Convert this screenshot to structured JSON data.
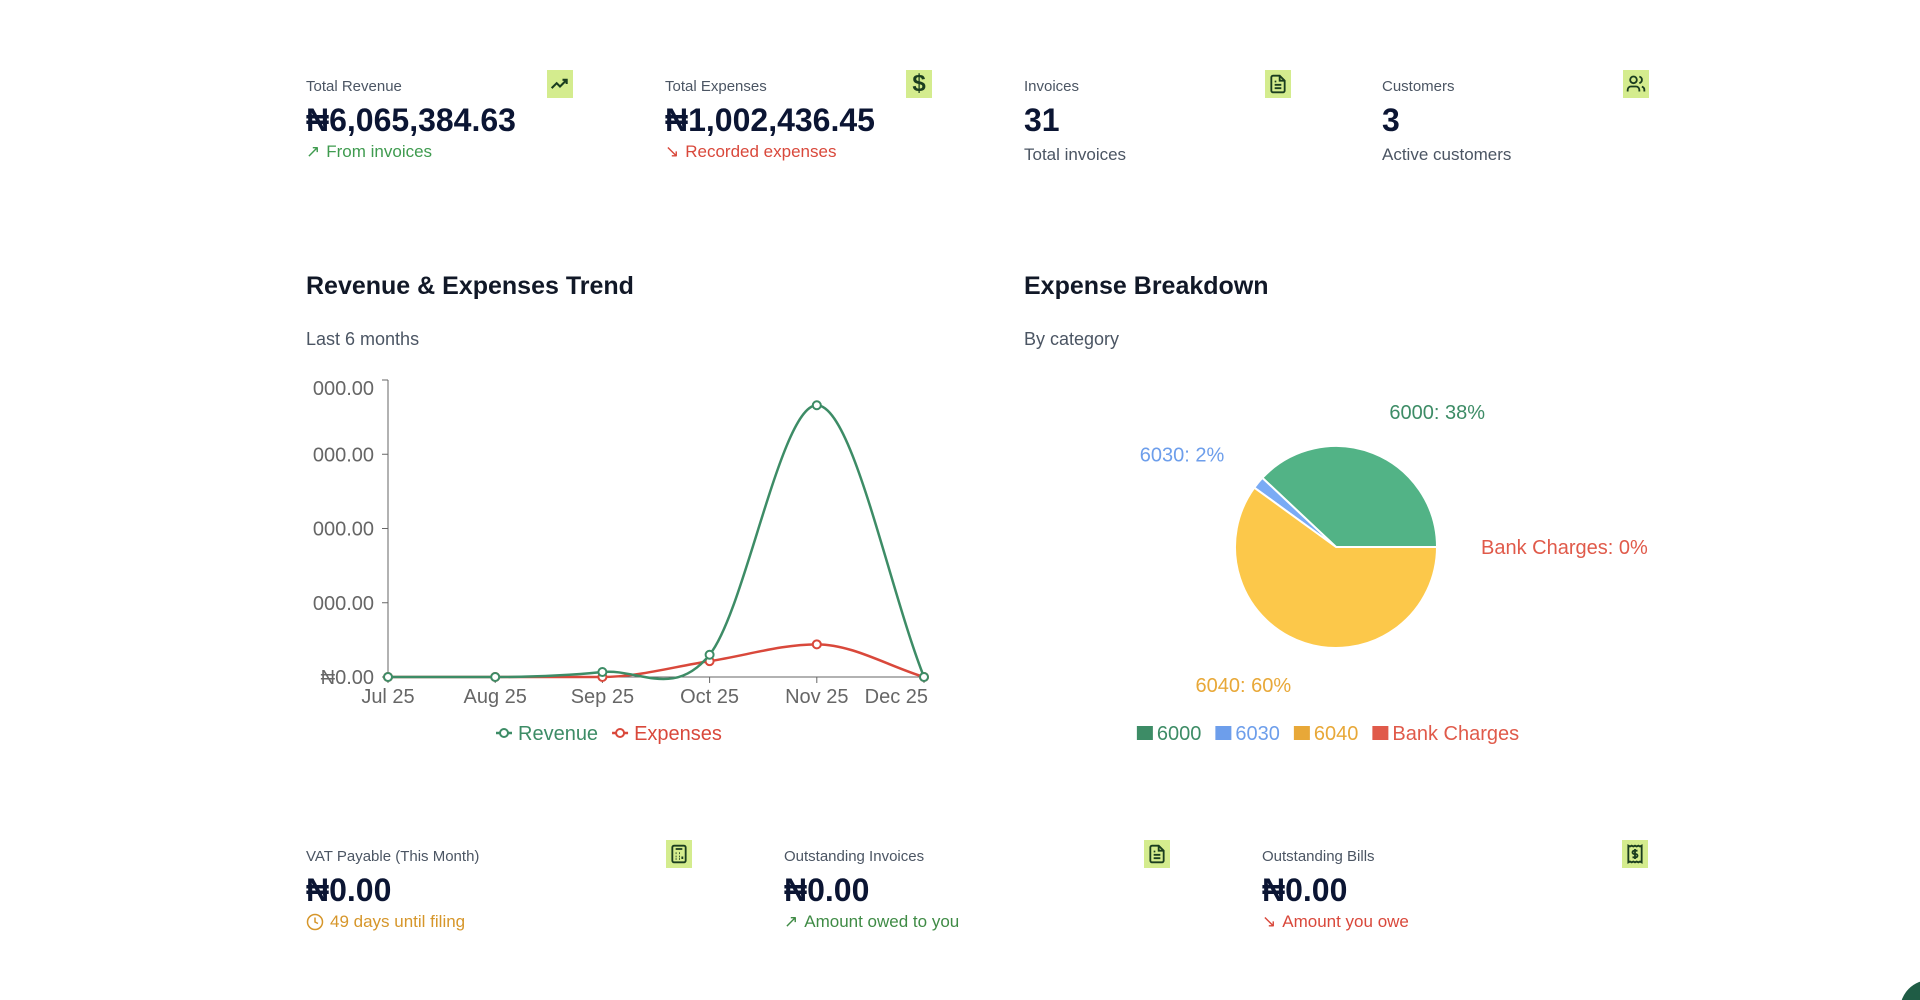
{
  "kpis": [
    {
      "label": "Total Revenue",
      "value": "₦6,065,384.63",
      "sub": "From invoices",
      "sub_icon": "arrow-up-right-icon",
      "sub_color": "#3f9b4f",
      "icon": "trending-up-icon"
    },
    {
      "label": "Total Expenses",
      "value": "₦1,002,436.45",
      "sub": "Recorded expenses",
      "sub_icon": "arrow-down-right-icon",
      "sub_color": "#d9483b",
      "icon": "dollar-icon"
    },
    {
      "label": "Invoices",
      "value": "31",
      "sub": "Total invoices",
      "icon": "file-text-icon"
    },
    {
      "label": "Customers",
      "value": "3",
      "sub": "Active customers",
      "icon": "users-icon"
    }
  ],
  "trend": {
    "title": "Revenue & Expenses Trend",
    "subtitle": "Last 6 months"
  },
  "breakdown": {
    "title": "Expense Breakdown",
    "subtitle": "By category"
  },
  "chart_data": [
    {
      "type": "line",
      "x": [
        "Jul 25",
        "Aug 25",
        "Sep 25",
        "Oct 25",
        "Nov 25",
        "Dec 25"
      ],
      "series": [
        {
          "name": "Revenue",
          "color": "#3d8c66",
          "values": [
            0,
            0,
            100000,
            450000,
            5490000,
            0
          ]
        },
        {
          "name": "Expenses",
          "color": "#d9483b",
          "values": [
            0,
            0,
            0,
            320000,
            660000,
            0
          ]
        }
      ],
      "ylim": [
        0,
        6000000
      ],
      "yticks": [
        0,
        1500000,
        3000000,
        4500000,
        6000000
      ],
      "ytick_labels": [
        "₦0.00",
        "000.00",
        "000.00",
        "000.00",
        "000.00"
      ],
      "grid": false,
      "legend": "bottom"
    },
    {
      "type": "pie",
      "slices": [
        {
          "name": "6000",
          "percent": 38,
          "label": "6000: 38%",
          "color": "#52b386",
          "legend_color": "#3d8c66"
        },
        {
          "name": "6030",
          "percent": 2,
          "label": "6030: 2%",
          "color": "#7aabf5",
          "legend_color": "#6d9eeb"
        },
        {
          "name": "6040",
          "percent": 60,
          "label": "6040: 60%",
          "color": "#fcc84a",
          "legend_color": "#e8a838"
        },
        {
          "name": "Bank Charges",
          "percent": 0,
          "label": "Bank Charges: 0%",
          "color": "#e05a4a",
          "legend_color": "#e05a4a"
        }
      ],
      "legend": "bottom"
    }
  ],
  "bottom": [
    {
      "label": "VAT Payable (This Month)",
      "value": "₦0.00",
      "sub": "49 days until filing",
      "sub_icon": "clock-icon",
      "sub_color": "#d6962a",
      "icon": "calculator-icon"
    },
    {
      "label": "Outstanding Invoices",
      "value": "₦0.00",
      "sub": "Amount owed to you",
      "sub_icon": "arrow-up-right-icon",
      "sub_color": "#3f8b45",
      "icon": "file-text-icon"
    },
    {
      "label": "Outstanding Bills",
      "value": "₦0.00",
      "sub": "Amount you owe",
      "sub_icon": "arrow-down-right-icon",
      "sub_color": "#d9483b",
      "icon": "receipt-icon"
    }
  ]
}
